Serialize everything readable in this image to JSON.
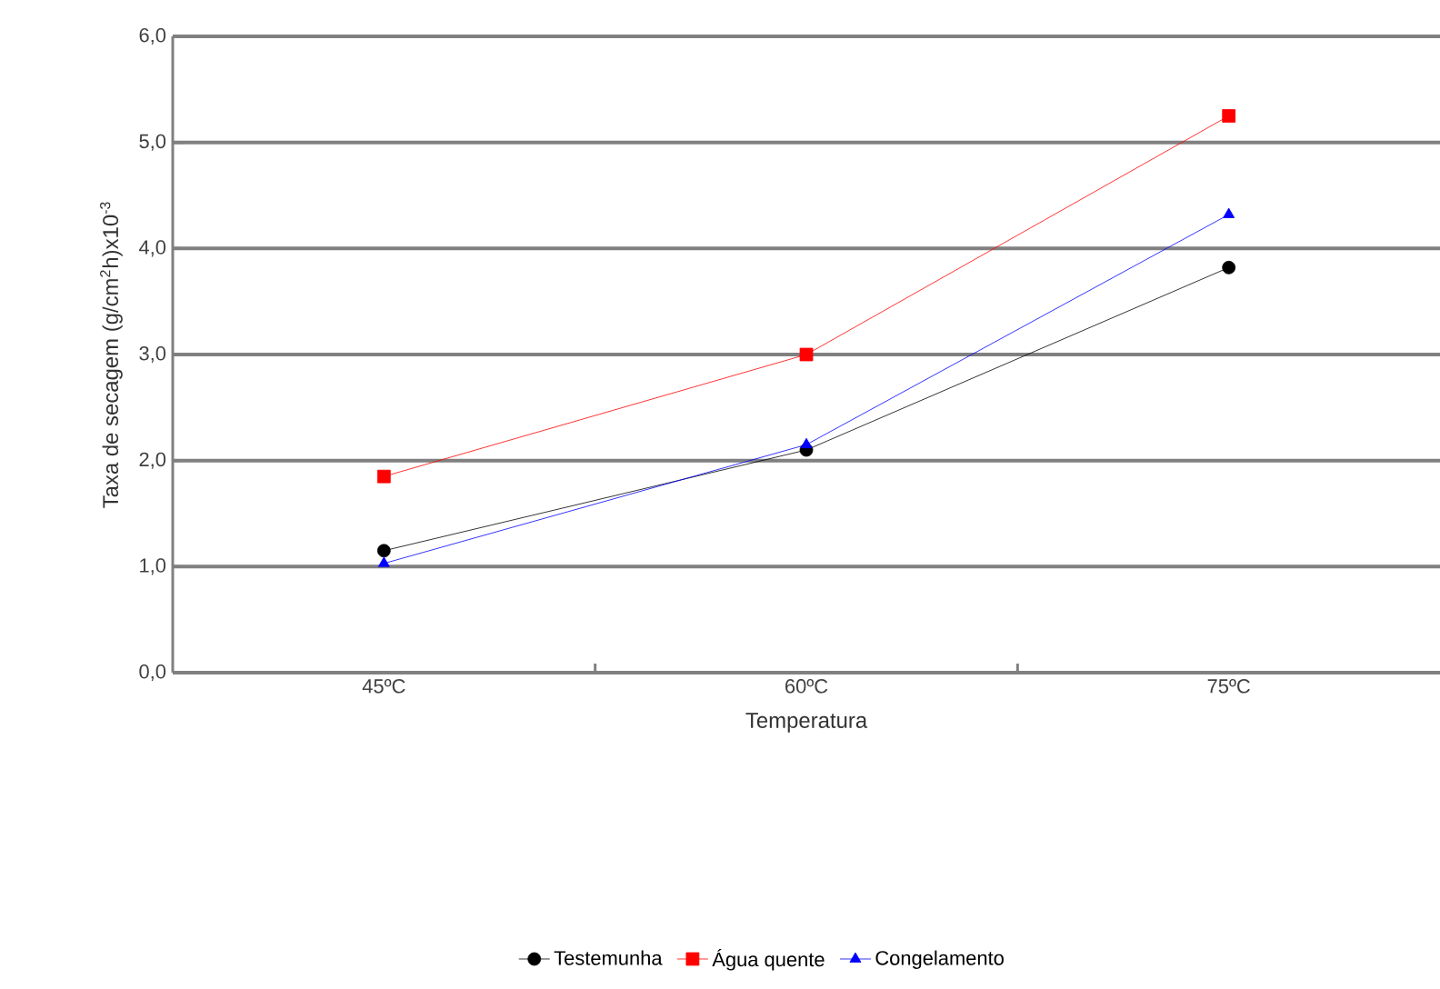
{
  "chart_data": {
    "type": "line",
    "xlabel": "Temperatura",
    "ylabel": "Taxa de secagem (g/cm$^{2}$h)x10$^{-3}$",
    "categories": [
      "45ºC",
      "60ºC",
      "75ºC"
    ],
    "series": [
      {
        "name": "Testemunha",
        "color": "#000000",
        "marker": "circle",
        "values": [
          1.15,
          2.1,
          3.82
        ]
      },
      {
        "name": "Água quente",
        "color": "#ff0000",
        "marker": "square",
        "values": [
          1.85,
          3.0,
          5.25
        ]
      },
      {
        "name": "Congelamento",
        "color": "#0000ff",
        "marker": "triangle",
        "values": [
          1.03,
          2.15,
          4.32
        ]
      }
    ],
    "ylim": [
      0,
      6
    ],
    "yticks": [
      {
        "value": 0,
        "label": "0,0"
      },
      {
        "value": 1,
        "label": "1,0"
      },
      {
        "value": 2,
        "label": "2,0"
      },
      {
        "value": 3,
        "label": "3,0"
      },
      {
        "value": 4,
        "label": "4,0"
      },
      {
        "value": 5,
        "label": "5,0"
      },
      {
        "value": 6,
        "label": "6,0"
      }
    ],
    "grid": "y",
    "legend": "bottom",
    "line_style": "solid"
  }
}
